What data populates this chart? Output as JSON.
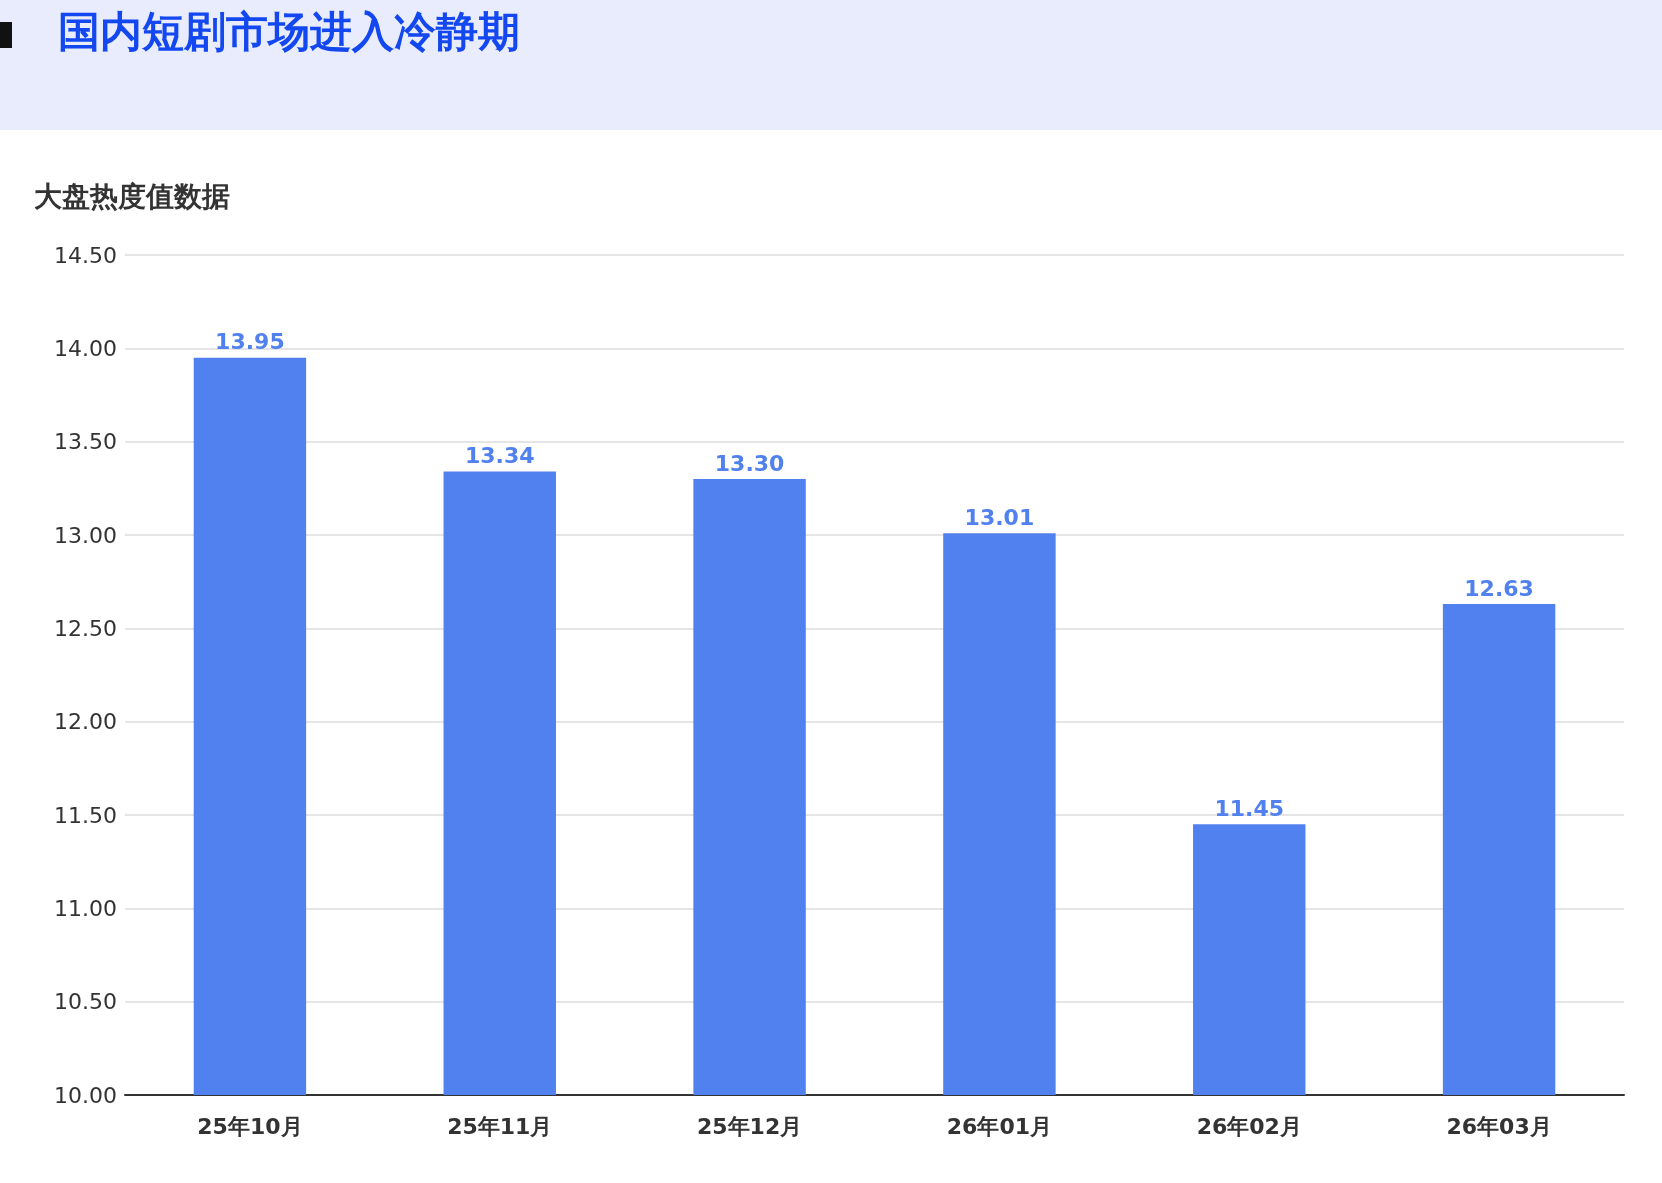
{
  "chart_data": {
    "type": "bar",
    "title": "国内短剧市场进入冷静期",
    "ylabel": "大盘热度值数据",
    "categories": [
      "25年10月",
      "25年11月",
      "25年12月",
      "26年01月",
      "26年02月",
      "26年03月"
    ],
    "values": [
      13.95,
      13.34,
      13.3,
      13.01,
      11.45,
      12.63
    ],
    "color": "#5181ee",
    "ylim": [
      10,
      14.5
    ],
    "yticks": [
      {
        "value": 10,
        "label": "10.00"
      },
      {
        "value": 10.5,
        "label": "10.50"
      },
      {
        "value": 11,
        "label": "11.00"
      },
      {
        "value": 11.5,
        "label": "11.50"
      },
      {
        "value": 12,
        "label": "12.00"
      },
      {
        "value": 12.5,
        "label": "12.50"
      },
      {
        "value": 13,
        "label": "13.00"
      },
      {
        "value": 13.5,
        "label": "13.50"
      },
      {
        "value": 14,
        "label": "14.00"
      },
      {
        "value": 14.5,
        "label": "14.50"
      }
    ],
    "value_labels": [
      "13.95",
      "13.34",
      "13.30",
      "13.01",
      "11.45",
      "12.63"
    ],
    "grid": "y"
  }
}
